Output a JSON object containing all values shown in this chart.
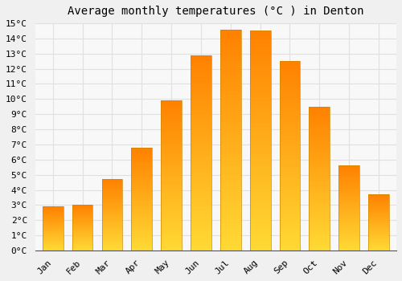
{
  "title": "Average monthly temperatures (°C ) in Denton",
  "months": [
    "Jan",
    "Feb",
    "Mar",
    "Apr",
    "May",
    "Jun",
    "Jul",
    "Aug",
    "Sep",
    "Oct",
    "Nov",
    "Dec"
  ],
  "values": [
    2.9,
    3.0,
    4.7,
    6.8,
    9.9,
    12.9,
    14.6,
    14.5,
    12.5,
    9.5,
    5.6,
    3.7
  ],
  "bar_color_top": "#FFAA00",
  "bar_color_bottom": "#FFD966",
  "bar_edge_color": "#CC8800",
  "ylim": [
    0,
    15
  ],
  "yticks": [
    0,
    1,
    2,
    3,
    4,
    5,
    6,
    7,
    8,
    9,
    10,
    11,
    12,
    13,
    14,
    15
  ],
  "background_color": "#f0f0f0",
  "plot_bg_color": "#f8f8f8",
  "grid_color": "#e0e0e0",
  "title_fontsize": 10,
  "tick_fontsize": 8,
  "font_family": "monospace"
}
